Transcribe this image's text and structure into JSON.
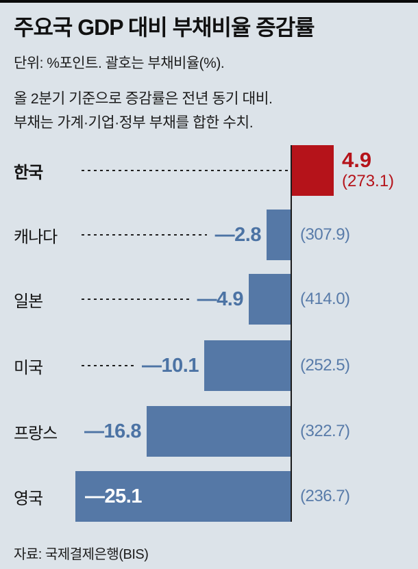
{
  "page": {
    "title": "주요국 GDP 대비 부채비율 증감률",
    "unit_note": "단위: %포인트. 괄호는 부채비율(%).",
    "note_line1": "올 2분기 기준으로 증감률은 전년 동기 대비.",
    "note_line2": "부채는 가계·기업·정부 부채를 합한 수치.",
    "source": "자료: 국제결제은행(BIS)"
  },
  "colors": {
    "background": "#dce3e9",
    "positive_bar": "#b5131a",
    "positive_text": "#b5131a",
    "negative_bar": "#5578a6",
    "negative_text": "#4c73a4",
    "ratio_text": "#587ba9",
    "inside_bar_text": "#ffffff",
    "axis": "#1b1b1b"
  },
  "chart_data": {
    "type": "bar",
    "orientation": "horizontal",
    "title": "주요국 GDP 대비 부채비율 증감률",
    "unit": "%포인트",
    "categories": [
      "한국",
      "캐나다",
      "일본",
      "미국",
      "프랑스",
      "영국"
    ],
    "values": [
      4.9,
      -2.8,
      -4.9,
      -10.1,
      -16.8,
      -25.1
    ],
    "debt_ratios": [
      273.1,
      307.9,
      414.0,
      252.5,
      322.7,
      236.7
    ],
    "rows": [
      {
        "country": "한국",
        "value": 4.9,
        "change_label": "4.9",
        "ratio_label": "(273.1)",
        "highlight": true,
        "bold_label": true,
        "leader": true,
        "value_position": "right-of-bar"
      },
      {
        "country": "캐나다",
        "value": -2.8,
        "change_label": "—2.8",
        "ratio_label": "(307.9)",
        "highlight": false,
        "bold_label": false,
        "leader": true,
        "value_position": "left-of-bar"
      },
      {
        "country": "일본",
        "value": -4.9,
        "change_label": "—4.9",
        "ratio_label": "(414.0)",
        "highlight": false,
        "bold_label": false,
        "leader": true,
        "value_position": "left-of-bar"
      },
      {
        "country": "미국",
        "value": -10.1,
        "change_label": "—10.1",
        "ratio_label": "(252.5)",
        "highlight": false,
        "bold_label": false,
        "leader": true,
        "value_position": "left-of-bar"
      },
      {
        "country": "프랑스",
        "value": -16.8,
        "change_label": "—16.8",
        "ratio_label": "(322.7)",
        "highlight": false,
        "bold_label": false,
        "leader": false,
        "value_position": "left-of-bar"
      },
      {
        "country": "영국",
        "value": -25.1,
        "change_label": "—25.1",
        "ratio_label": "(236.7)",
        "highlight": false,
        "bold_label": false,
        "leader": false,
        "value_position": "inside-bar"
      }
    ]
  }
}
